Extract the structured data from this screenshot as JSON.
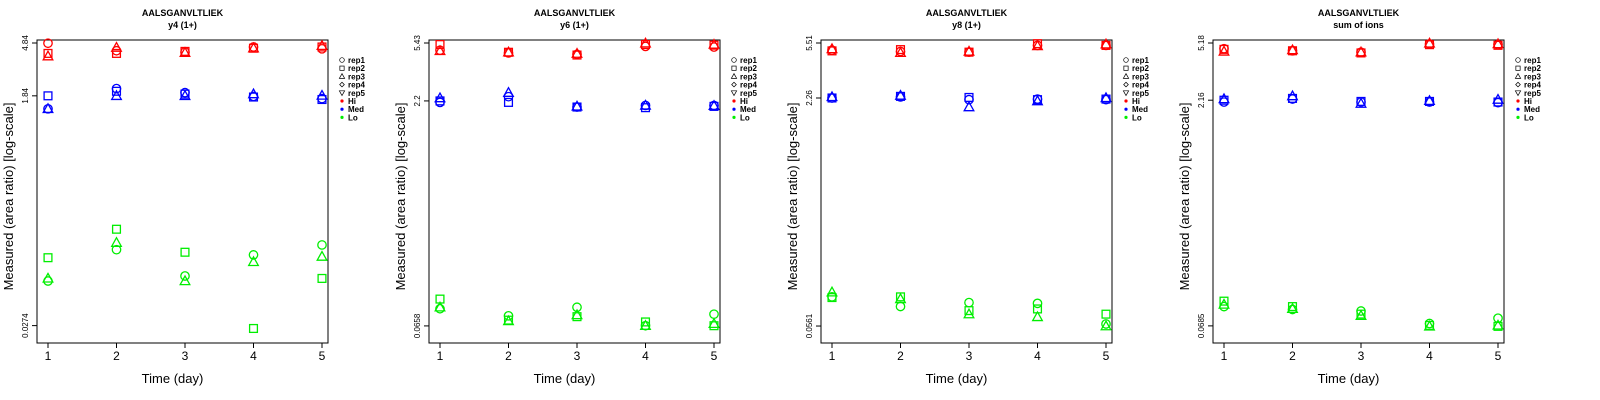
{
  "chart_data": [
    {
      "type": "scatter",
      "title": "AALSGANVLTLIEK",
      "subtitle": "y4 (1+)",
      "xlabel": "Time (day)",
      "ylabel": "Measured (area ratio) [log-scale]",
      "x_ticks": [
        "1",
        "2",
        "3",
        "4",
        "5"
      ],
      "y_ticks": [
        {
          "value": 4.84,
          "label": "4.84"
        },
        {
          "value": 1.84,
          "label": "1.84"
        },
        {
          "value": 0.0274,
          "label": "0.0274"
        }
      ],
      "ylim": [
        0.0235,
        4.84
      ],
      "scale": "log",
      "legend": {
        "position": "right",
        "markers": [
          "rep1",
          "rep2",
          "rep3",
          "rep4",
          "rep5"
        ],
        "groups": [
          "Hi",
          "Med",
          "Lo"
        ]
      },
      "series": [
        {
          "group": "Hi",
          "marker": "rep1",
          "x": [
            1,
            2,
            3,
            4,
            5
          ],
          "values": [
            4.82,
            4.2,
            4.1,
            4.5,
            4.35
          ]
        },
        {
          "group": "Hi",
          "marker": "rep2",
          "x": [
            1,
            2,
            3,
            4,
            5
          ],
          "values": [
            4.0,
            4.0,
            4.15,
            4.4,
            4.5
          ]
        },
        {
          "group": "Hi",
          "marker": "rep3",
          "x": [
            1,
            2,
            3,
            4,
            5
          ],
          "values": [
            3.8,
            4.45,
            4.05,
            4.4,
            4.6
          ]
        },
        {
          "group": "Med",
          "marker": "rep1",
          "x": [
            1,
            2,
            3,
            4,
            5
          ],
          "values": [
            1.45,
            2.1,
            1.95,
            1.82,
            1.75
          ]
        },
        {
          "group": "Med",
          "marker": "rep2",
          "x": [
            1,
            2,
            3,
            4,
            5
          ],
          "values": [
            1.84,
            2.0,
            1.9,
            1.8,
            1.72
          ]
        },
        {
          "group": "Med",
          "marker": "rep3",
          "x": [
            1,
            2,
            3,
            4,
            5
          ],
          "values": [
            1.45,
            1.84,
            1.84,
            1.9,
            1.85
          ]
        },
        {
          "group": "Lo",
          "marker": "rep1",
          "x": [
            1,
            2,
            3,
            4,
            5
          ],
          "values": [
            0.062,
            0.11,
            0.068,
            0.1,
            0.12
          ]
        },
        {
          "group": "Lo",
          "marker": "rep2",
          "x": [
            1,
            2,
            3,
            4,
            5
          ],
          "values": [
            0.095,
            0.16,
            0.105,
            0.026,
            0.065
          ]
        },
        {
          "group": "Lo",
          "marker": "rep3",
          "x": [
            1,
            2,
            3,
            4,
            5
          ],
          "values": [
            0.065,
            0.125,
            0.062,
            0.088,
            0.097
          ]
        }
      ]
    },
    {
      "type": "scatter",
      "title": "AALSGANVLTLIEK",
      "subtitle": "y6 (1+)",
      "xlabel": "Time (day)",
      "ylabel": "Measured (area ratio) [log-scale]",
      "x_ticks": [
        "1",
        "2",
        "3",
        "4",
        "5"
      ],
      "y_ticks": [
        {
          "value": 5.43,
          "label": "5.43"
        },
        {
          "value": 2.2,
          "label": "2.2"
        },
        {
          "value": 0.0658,
          "label": "0.0658"
        }
      ],
      "ylim": [
        0.058,
        5.43
      ],
      "scale": "log",
      "legend": {
        "position": "right",
        "markers": [
          "rep1",
          "rep2",
          "rep3",
          "rep4",
          "rep5"
        ],
        "groups": [
          "Hi",
          "Med",
          "Lo"
        ]
      },
      "series": [
        {
          "group": "Hi",
          "marker": "rep1",
          "x": [
            1,
            2,
            3,
            4,
            5
          ],
          "values": [
            4.85,
            4.65,
            4.55,
            5.15,
            5.1
          ]
        },
        {
          "group": "Hi",
          "marker": "rep2",
          "x": [
            1,
            2,
            3,
            4,
            5
          ],
          "values": [
            5.3,
            4.7,
            4.5,
            5.3,
            5.25
          ]
        },
        {
          "group": "Hi",
          "marker": "rep3",
          "x": [
            1,
            2,
            3,
            4,
            5
          ],
          "values": [
            4.8,
            4.7,
            4.6,
            5.4,
            5.3
          ]
        },
        {
          "group": "Med",
          "marker": "rep1",
          "x": [
            1,
            2,
            3,
            4,
            5
          ],
          "values": [
            2.15,
            2.35,
            2.0,
            2.05,
            2.05
          ]
        },
        {
          "group": "Med",
          "marker": "rep2",
          "x": [
            1,
            2,
            3,
            4,
            5
          ],
          "values": [
            2.2,
            2.15,
            2.0,
            1.98,
            2.02
          ]
        },
        {
          "group": "Med",
          "marker": "rep3",
          "x": [
            1,
            2,
            3,
            4,
            5
          ],
          "values": [
            2.3,
            2.5,
            2.02,
            2.05,
            2.04
          ]
        },
        {
          "group": "Lo",
          "marker": "rep1",
          "x": [
            1,
            2,
            3,
            4,
            5
          ],
          "values": [
            0.086,
            0.077,
            0.088,
            0.066,
            0.079
          ]
        },
        {
          "group": "Lo",
          "marker": "rep2",
          "x": [
            1,
            2,
            3,
            4,
            5
          ],
          "values": [
            0.1,
            0.072,
            0.076,
            0.07,
            0.066
          ]
        },
        {
          "group": "Lo",
          "marker": "rep3",
          "x": [
            1,
            2,
            3,
            4,
            5
          ],
          "values": [
            0.088,
            0.071,
            0.078,
            0.066,
            0.068
          ]
        }
      ]
    },
    {
      "type": "scatter",
      "title": "AALSGANVLTLIEK",
      "subtitle": "y8 (1+)",
      "xlabel": "Time (day)",
      "ylabel": "Measured (area ratio) [log-scale]",
      "x_ticks": [
        "1",
        "2",
        "3",
        "4",
        "5"
      ],
      "y_ticks": [
        {
          "value": 5.51,
          "label": "5.51"
        },
        {
          "value": 2.26,
          "label": "2.26"
        },
        {
          "value": 0.0561,
          "label": "0.0561"
        }
      ],
      "ylim": [
        0.0493,
        5.51
      ],
      "scale": "log",
      "legend": {
        "position": "right",
        "markers": [
          "rep1",
          "rep2",
          "rep3",
          "rep4",
          "rep5"
        ],
        "groups": [
          "Hi",
          "Med",
          "Lo"
        ]
      },
      "series": [
        {
          "group": "Hi",
          "marker": "rep1",
          "x": [
            1,
            2,
            3,
            4,
            5
          ],
          "values": [
            4.9,
            4.8,
            4.75,
            5.3,
            5.3
          ]
        },
        {
          "group": "Hi",
          "marker": "rep2",
          "x": [
            1,
            2,
            3,
            4,
            5
          ],
          "values": [
            4.85,
            4.95,
            4.75,
            5.45,
            5.3
          ]
        },
        {
          "group": "Hi",
          "marker": "rep3",
          "x": [
            1,
            2,
            3,
            4,
            5
          ],
          "values": [
            5.0,
            4.7,
            4.8,
            5.25,
            5.4
          ]
        },
        {
          "group": "Med",
          "marker": "rep1",
          "x": [
            1,
            2,
            3,
            4,
            5
          ],
          "values": [
            2.26,
            2.3,
            2.2,
            2.22,
            2.2
          ]
        },
        {
          "group": "Med",
          "marker": "rep2",
          "x": [
            1,
            2,
            3,
            4,
            5
          ],
          "values": [
            2.26,
            2.32,
            2.28,
            2.2,
            2.22
          ]
        },
        {
          "group": "Med",
          "marker": "rep3",
          "x": [
            1,
            2,
            3,
            4,
            5
          ],
          "values": [
            2.3,
            2.35,
            1.95,
            2.15,
            2.26
          ]
        },
        {
          "group": "Lo",
          "marker": "rep1",
          "x": [
            1,
            2,
            3,
            4,
            5
          ],
          "values": [
            0.09,
            0.077,
            0.082,
            0.081,
            0.058
          ]
        },
        {
          "group": "Lo",
          "marker": "rep2",
          "x": [
            1,
            2,
            3,
            4,
            5
          ],
          "values": [
            0.089,
            0.09,
            0.072,
            0.074,
            0.068
          ]
        },
        {
          "group": "Lo",
          "marker": "rep3",
          "x": [
            1,
            2,
            3,
            4,
            5
          ],
          "values": [
            0.097,
            0.087,
            0.068,
            0.065,
            0.056
          ]
        }
      ]
    },
    {
      "type": "scatter",
      "title": "AALSGANVLTLIEK",
      "subtitle": "sum of ions",
      "xlabel": "Time (day)",
      "ylabel": "Measured (area ratio) [log-scale]",
      "x_ticks": [
        "1",
        "2",
        "3",
        "4",
        "5"
      ],
      "y_ticks": [
        {
          "value": 5.18,
          "label": "5.18"
        },
        {
          "value": 2.16,
          "label": "2.16"
        },
        {
          "value": 0.0685,
          "label": "0.0685"
        }
      ],
      "ylim": [
        0.0605,
        5.18
      ],
      "scale": "log",
      "legend": {
        "position": "right",
        "markers": [
          "rep1",
          "rep2",
          "rep3",
          "rep4",
          "rep5"
        ],
        "groups": [
          "Hi",
          "Med",
          "Lo"
        ]
      },
      "series": [
        {
          "group": "Hi",
          "marker": "rep1",
          "x": [
            1,
            2,
            3,
            4,
            5
          ],
          "values": [
            4.75,
            4.6,
            4.5,
            5.1,
            5.05
          ]
        },
        {
          "group": "Hi",
          "marker": "rep2",
          "x": [
            1,
            2,
            3,
            4,
            5
          ],
          "values": [
            4.7,
            4.6,
            4.45,
            5.05,
            5.0
          ]
        },
        {
          "group": "Hi",
          "marker": "rep3",
          "x": [
            1,
            2,
            3,
            4,
            5
          ],
          "values": [
            4.55,
            4.65,
            4.5,
            5.15,
            5.1
          ]
        },
        {
          "group": "Med",
          "marker": "rep1",
          "x": [
            1,
            2,
            3,
            4,
            5
          ],
          "values": [
            2.1,
            2.2,
            2.1,
            2.1,
            2.08
          ]
        },
        {
          "group": "Med",
          "marker": "rep2",
          "x": [
            1,
            2,
            3,
            4,
            5
          ],
          "values": [
            2.16,
            2.22,
            2.12,
            2.12,
            2.1
          ]
        },
        {
          "group": "Med",
          "marker": "rep3",
          "x": [
            1,
            2,
            3,
            4,
            5
          ],
          "values": [
            2.2,
            2.3,
            2.05,
            2.14,
            2.18
          ]
        },
        {
          "group": "Lo",
          "marker": "rep1",
          "x": [
            1,
            2,
            3,
            4,
            5
          ],
          "values": [
            0.092,
            0.088,
            0.086,
            0.071,
            0.077
          ]
        },
        {
          "group": "Lo",
          "marker": "rep2",
          "x": [
            1,
            2,
            3,
            4,
            5
          ],
          "values": [
            0.1,
            0.092,
            0.082,
            0.069,
            0.068
          ]
        },
        {
          "group": "Lo",
          "marker": "rep3",
          "x": [
            1,
            2,
            3,
            4,
            5
          ],
          "values": [
            0.095,
            0.089,
            0.08,
            0.068,
            0.069
          ]
        }
      ]
    }
  ],
  "colors": {
    "Hi": "#ff0000",
    "Med": "#0000ff",
    "Lo": "#00ee00",
    "axis": "#000000"
  }
}
